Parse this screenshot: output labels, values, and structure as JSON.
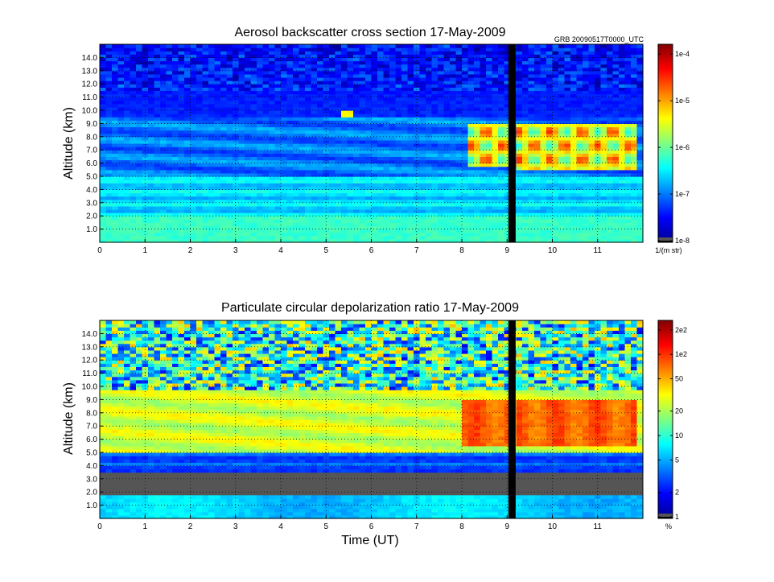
{
  "chart_data": [
    {
      "type": "heatmap",
      "title": "Aerosol backscatter cross section  17-May-2009",
      "annotation": "GRB   20090517T0000_UTC",
      "xlabel": "",
      "ylabel": "Altitude (km)",
      "xlim": [
        0,
        12
      ],
      "ylim": [
        0,
        15
      ],
      "x_ticks": [
        "0",
        "1",
        "2",
        "3",
        "4",
        "5",
        "6",
        "7",
        "8",
        "9",
        "10",
        "11"
      ],
      "y_ticks": [
        "1.0",
        "2.0",
        "3.0",
        "4.0",
        "5.0",
        "6.0",
        "7.0",
        "8.0",
        "9.0",
        "10.0",
        "11.0",
        "12.0",
        "13.0",
        "14.0"
      ],
      "grid": true,
      "scale": "log",
      "colormap": "jet",
      "colorbar": {
        "ticks": [
          "1e-8",
          "1e-7",
          "1e-6",
          "1e-5",
          "1e-4"
        ],
        "unit": "1/(m str)",
        "min": 1e-08,
        "max": 0.00015
      },
      "data_gap_time_hours": 9.1
    },
    {
      "type": "heatmap",
      "title": "Particulate circular depolarization ratio  17-May-2009",
      "xlabel": "Time (UT)",
      "ylabel": "Altitude (km)",
      "xlim": [
        0,
        12
      ],
      "ylim": [
        0,
        15
      ],
      "x_ticks": [
        "0",
        "1",
        "2",
        "3",
        "4",
        "5",
        "6",
        "7",
        "8",
        "9",
        "10",
        "11"
      ],
      "y_ticks": [
        "1.0",
        "2.0",
        "3.0",
        "4.0",
        "5.0",
        "6.0",
        "7.0",
        "8.0",
        "9.0",
        "10.0",
        "11.0",
        "12.0",
        "13.0",
        "14.0"
      ],
      "grid": true,
      "scale": "log",
      "colormap": "jet",
      "colorbar": {
        "ticks": [
          "1",
          "2",
          "5",
          "10",
          "20",
          "50",
          "1e2",
          "2e2"
        ],
        "unit": "%",
        "min": 1,
        "max": 250
      },
      "data_gap_time_hours": 9.1
    }
  ]
}
